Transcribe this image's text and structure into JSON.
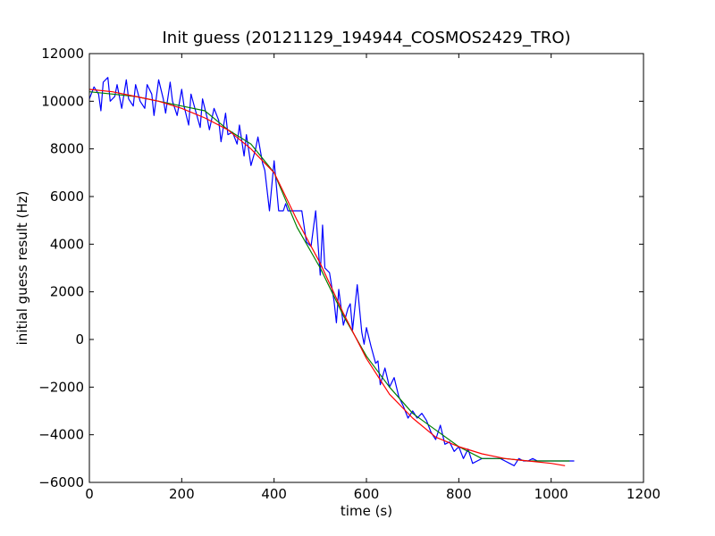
{
  "chart_data": {
    "type": "line",
    "title": "Init guess (20121129_194944_COSMOS2429_TRO)",
    "xlabel": "time (s)",
    "ylabel": "initial guess result (Hz)",
    "xlim": [
      0,
      1200
    ],
    "ylim": [
      -6000,
      12000
    ],
    "xticks": [
      0,
      200,
      400,
      600,
      800,
      1000,
      1200
    ],
    "yticks": [
      -6000,
      -4000,
      -2000,
      0,
      2000,
      4000,
      6000,
      8000,
      10000,
      12000
    ],
    "xtick_labels": [
      "0",
      "200",
      "400",
      "600",
      "800",
      "1000",
      "1200"
    ],
    "ytick_labels": [
      "−6000",
      "−4000",
      "−2000",
      "0",
      "2000",
      "4000",
      "6000",
      "8000",
      "10000",
      "12000"
    ],
    "grid": false,
    "colors": {
      "raw": "#0000ff",
      "smoothed": "#008000",
      "fit": "#ff0000"
    },
    "series": [
      {
        "color_key": "raw",
        "x": [
          0,
          10,
          20,
          25,
          30,
          40,
          45,
          55,
          60,
          70,
          80,
          85,
          95,
          100,
          110,
          120,
          125,
          135,
          140,
          150,
          160,
          165,
          175,
          180,
          190,
          200,
          205,
          215,
          220,
          230,
          240,
          245,
          255,
          260,
          270,
          280,
          285,
          295,
          300,
          310,
          320,
          325,
          335,
          340,
          350,
          360,
          365,
          375,
          380,
          390,
          400,
          410,
          420,
          425,
          430,
          440,
          450,
          460,
          470,
          480,
          490,
          500,
          505,
          510,
          520,
          530,
          535,
          540,
          550,
          560,
          565,
          570,
          580,
          590,
          595,
          600,
          610,
          620,
          625,
          630,
          640,
          650,
          660,
          670,
          680,
          690,
          700,
          710,
          720,
          730,
          740,
          750,
          760,
          770,
          780,
          790,
          800,
          810,
          820,
          830,
          840,
          850,
          860,
          870,
          880,
          890,
          900,
          910,
          920,
          930,
          940,
          950,
          960,
          970,
          980,
          990,
          1000,
          1010,
          1020,
          1030,
          1040,
          1050
        ],
        "y": [
          10100,
          10600,
          10300,
          9600,
          10800,
          11000,
          10000,
          10200,
          10700,
          9700,
          10900,
          10100,
          9800,
          10700,
          10000,
          9700,
          10700,
          10300,
          9400,
          10900,
          10100,
          9500,
          10800,
          10000,
          9400,
          10500,
          9800,
          9000,
          10300,
          9600,
          8900,
          10100,
          9300,
          8800,
          9700,
          9200,
          8300,
          9500,
          8600,
          8700,
          8200,
          9000,
          7700,
          8600,
          7300,
          8000,
          8500,
          7400,
          7100,
          5400,
          7500,
          5400,
          5400,
          5700,
          5400,
          5400,
          5400,
          5400,
          4100,
          3900,
          5400,
          2700,
          4800,
          3000,
          2800,
          1600,
          700,
          2100,
          600,
          1300,
          1500,
          400,
          2300,
          300,
          -200,
          500,
          -300,
          -1000,
          -900,
          -1900,
          -1200,
          -2000,
          -1600,
          -2400,
          -2800,
          -3300,
          -3000,
          -3300,
          -3100,
          -3400,
          -3900,
          -4200,
          -3600,
          -4400,
          -4300,
          -4700,
          -4500,
          -5000,
          -4600,
          -5200,
          -5100,
          -5000,
          -5000,
          -5000,
          -5000,
          -5000,
          -5100,
          -5200,
          -5300,
          -5000,
          -5100,
          -5100,
          -5000,
          -5100,
          -5100,
          -5100,
          -5100,
          -5100,
          -5100,
          -5100,
          -5100,
          -5100
        ]
      },
      {
        "color_key": "smoothed",
        "x": [
          0,
          50,
          100,
          150,
          200,
          250,
          300,
          350,
          400,
          450,
          500,
          550,
          600,
          650,
          700,
          750,
          800,
          850,
          900,
          950,
          1000,
          1040
        ],
        "y": [
          10400,
          10300,
          10200,
          10000,
          9800,
          9600,
          8800,
          8200,
          7000,
          4700,
          3000,
          1000,
          -700,
          -2000,
          -3100,
          -3800,
          -4500,
          -5000,
          -5000,
          -5100,
          -5100,
          -5100
        ]
      },
      {
        "color_key": "fit",
        "x": [
          0,
          50,
          100,
          150,
          200,
          250,
          300,
          350,
          400,
          450,
          500,
          550,
          600,
          650,
          700,
          750,
          800,
          850,
          900,
          950,
          1000,
          1030
        ],
        "y": [
          10500,
          10400,
          10200,
          10000,
          9700,
          9300,
          8800,
          8000,
          7000,
          5000,
          3200,
          1100,
          -800,
          -2300,
          -3300,
          -4100,
          -4500,
          -4800,
          -5000,
          -5100,
          -5200,
          -5300
        ]
      }
    ]
  }
}
